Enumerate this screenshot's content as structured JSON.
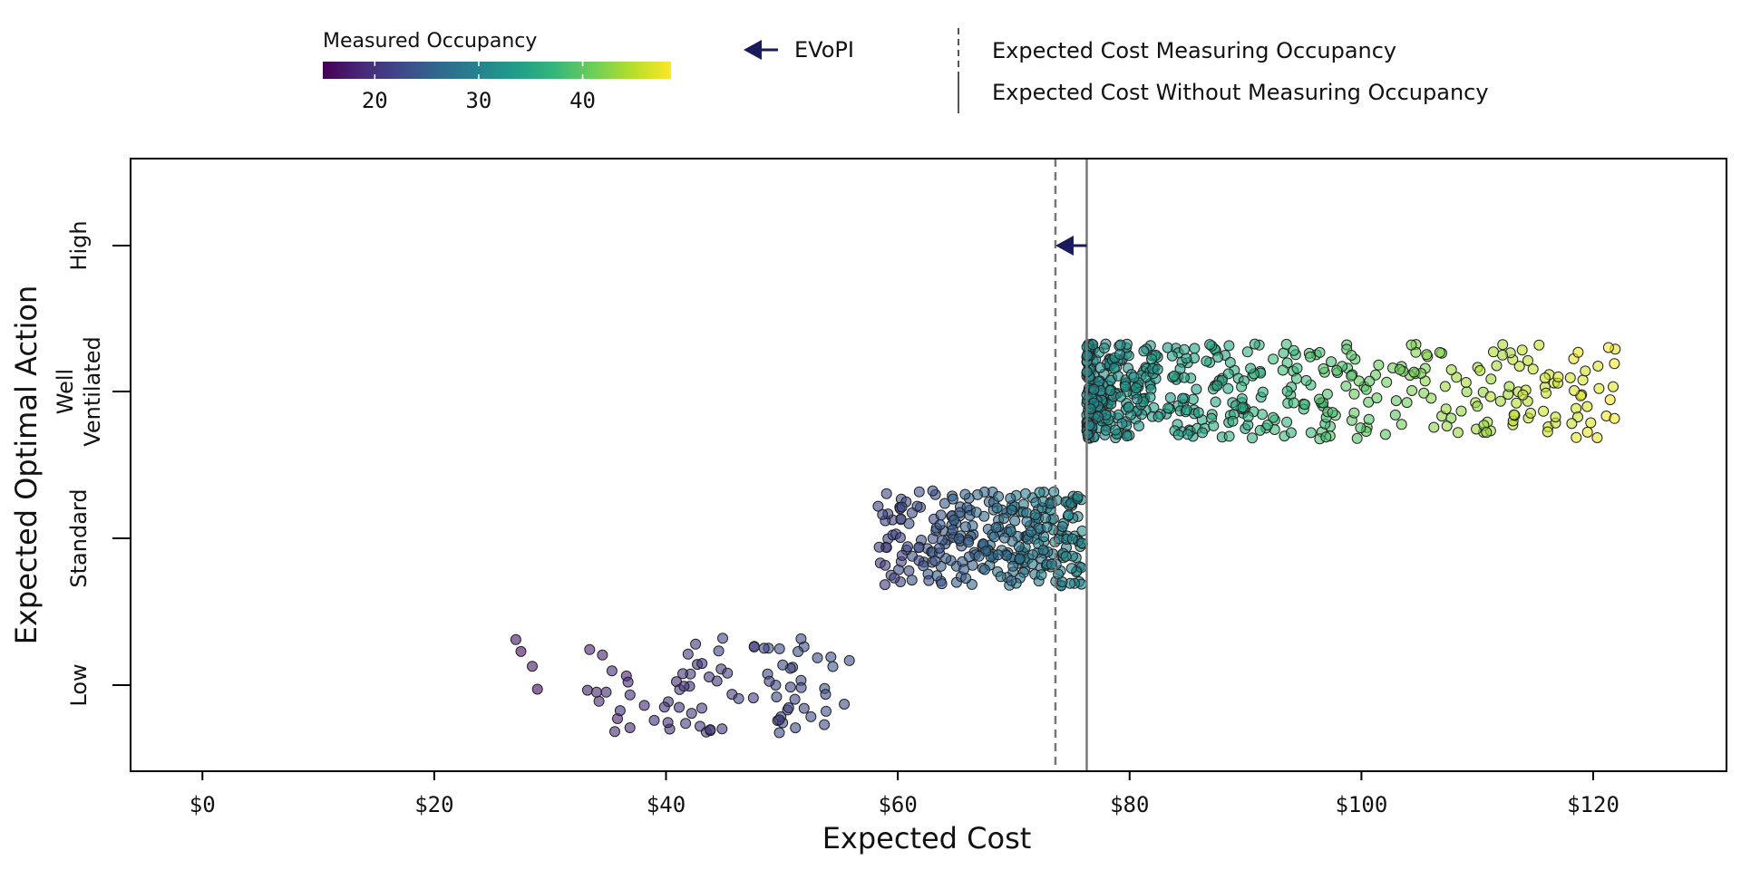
{
  "chart_data": {
    "type": "scatter",
    "title": "",
    "xlabel": "Expected Cost",
    "ylabel": "Expected Optimal Action",
    "xlim": [
      -6.2,
      131.5
    ],
    "x_ticks": [
      0,
      20,
      40,
      60,
      80,
      100,
      120
    ],
    "x_tick_labels": [
      "$0",
      "$20",
      "$40",
      "$60",
      "$80",
      "$100",
      "$120"
    ],
    "categories": [
      "Low",
      "Standard",
      "Well Ventilated",
      "High"
    ],
    "category_labels": [
      [
        "Low"
      ],
      [
        "Standard"
      ],
      [
        "Well",
        "Ventilated"
      ],
      [
        "High"
      ]
    ],
    "grid": false,
    "colorbar": {
      "title": "Measured Occupancy",
      "range": [
        15,
        48.5
      ],
      "ticks": [
        20,
        30,
        40
      ],
      "colormap": "viridis",
      "colors": [
        "#440154",
        "#482878",
        "#3e4989",
        "#31688e",
        "#26828e",
        "#1f9e89",
        "#35b779",
        "#6ece58",
        "#b5de2b",
        "#fde725"
      ]
    },
    "reference_lines": [
      {
        "label": "Expected Cost Measuring Occupancy",
        "x": 73.6,
        "style": "dashed"
      },
      {
        "label": "Expected Cost Without Measuring Occupancy",
        "x": 76.3,
        "style": "solid"
      }
    ],
    "evopi": {
      "label": "EVoPI",
      "category": "High",
      "from_x": 76.3,
      "to_x": 73.6
    },
    "clusters": [
      {
        "category": "Low",
        "x_range": [
          26,
          56
        ],
        "occupancy_range": [
          16,
          24
        ],
        "count": 90
      },
      {
        "category": "Standard",
        "x_range": [
          58,
          76
        ],
        "occupancy_range": [
          21,
          31
        ],
        "count": 300
      },
      {
        "category": "Well Ventilated",
        "x_range": [
          76.3,
          122
        ],
        "occupancy_range": [
          31,
          48
        ],
        "count": 520
      }
    ]
  },
  "legend": {
    "evopi_label": "EVoPI",
    "dashed_label": "Expected Cost Measuring Occupancy",
    "solid_label": "Expected Cost Without Measuring Occupancy",
    "arrow_color": "#1a1a5e",
    "line_color": "#777777"
  }
}
